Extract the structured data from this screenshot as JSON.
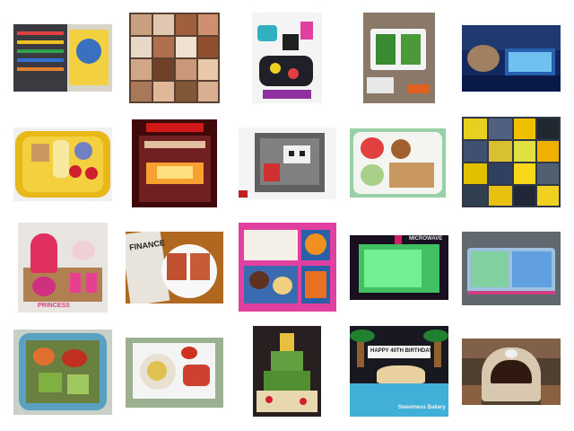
{
  "gallery": {
    "thumbnails": [
      {
        "row": 1,
        "col": 1,
        "subject": "abacus-toy-box"
      },
      {
        "row": 1,
        "col": 2,
        "subject": "cupcake-collage"
      },
      {
        "row": 1,
        "col": 3,
        "subject": "colorful-trinkets"
      },
      {
        "row": 1,
        "col": 4,
        "subject": "bento-box-craft"
      },
      {
        "row": 1,
        "col": 5,
        "subject": "blue-tray-display"
      },
      {
        "row": 2,
        "col": 1,
        "subject": "yellow-lunchbox-fruit"
      },
      {
        "row": 2,
        "col": 2,
        "subject": "glowing-toaster-oven"
      },
      {
        "row": 2,
        "col": 3,
        "subject": "miniature-room-diorama"
      },
      {
        "row": 2,
        "col": 4,
        "subject": "bento-sandwich-fruit"
      },
      {
        "row": 2,
        "col": 5,
        "subject": "yellow-objects-collage"
      },
      {
        "row": 3,
        "col": 1,
        "subject": "pink-princess-cake"
      },
      {
        "row": 3,
        "col": 2,
        "subject": "toast-with-newspaper"
      },
      {
        "row": 3,
        "col": 3,
        "subject": "pink-bento-lunchbox"
      },
      {
        "row": 3,
        "col": 4,
        "subject": "green-glowing-microwave"
      },
      {
        "row": 3,
        "col": 5,
        "subject": "ziplock-bag-snack"
      },
      {
        "row": 4,
        "col": 1,
        "subject": "blue-salad-container"
      },
      {
        "row": 4,
        "col": 2,
        "subject": "plate-with-tray"
      },
      {
        "row": 4,
        "col": 3,
        "subject": "decorated-tree-cake"
      },
      {
        "row": 4,
        "col": 4,
        "subject": "beach-birthday-cake"
      },
      {
        "row": 4,
        "col": 5,
        "subject": "toy-wooden-oven"
      }
    ],
    "captions": {
      "finance_newspaper": "FINANCE",
      "microwave_sign": "MICROWAVE",
      "beach_cake_text": "HAPPY 40TH BIRTHDAY",
      "beach_cake_brand": "Sweetness Bakery",
      "princess_cake_watermark": "PRINCESS"
    }
  }
}
